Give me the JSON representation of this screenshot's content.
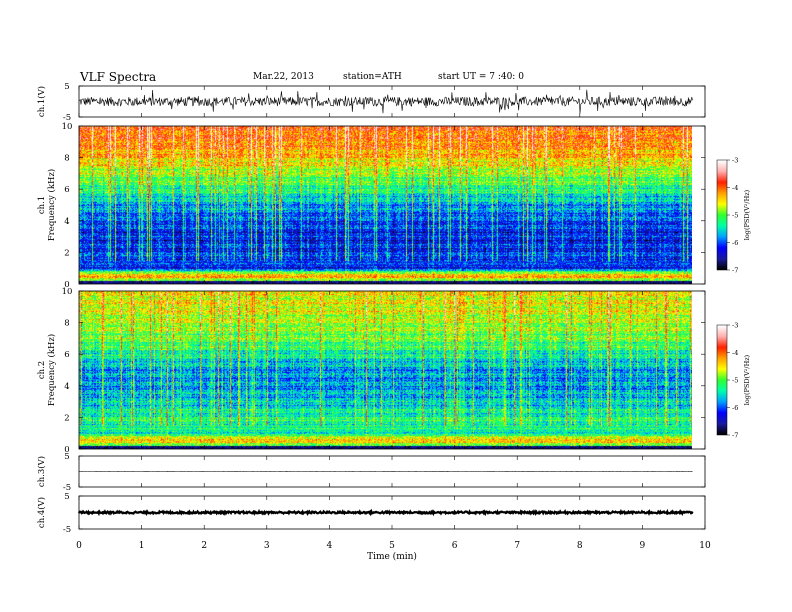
{
  "header": {
    "title": "VLF  Spectra",
    "date": "Mar.22, 2013",
    "station": "station=ATH",
    "start_ut": "start  UT  =   7 :40: 0"
  },
  "colors": {
    "background": "#ffffff",
    "axis": "#000000",
    "colormap": [
      "#000000",
      "#1a1aa0",
      "#0000ff",
      "#00a0ff",
      "#00ffaa",
      "#30ff30",
      "#ffff00",
      "#ffa000",
      "#ff2000",
      "#ffb0b0",
      "#ffffff"
    ]
  },
  "chart_data": [
    {
      "type": "line",
      "panel": "ch1-waveform",
      "ylabel": "ch.1(V)",
      "yticks": [
        "5",
        "-5"
      ],
      "ylim": [
        -5,
        5
      ],
      "xlim": [
        0,
        10
      ],
      "data_end_min": 9.8,
      "typical_amplitude_v": 1.5,
      "description_values": {
        "baseline": 0
      }
    },
    {
      "type": "heatmap",
      "panel": "ch1-spectrogram",
      "ylabel": "ch.1\nFrequency  (kHz)",
      "ylabel_lines": [
        "ch.1",
        "Frequency  (kHz)"
      ],
      "yticks": [
        "0",
        "2",
        "4",
        "6",
        "8",
        "10"
      ],
      "ylim": [
        0,
        10
      ],
      "xlim": [
        0,
        10
      ],
      "data_end_min": 9.8,
      "colorbar": {
        "label": "log(PSD(V²/Hz)",
        "ticks": [
          "-3",
          "-4",
          "-5",
          "-6",
          "-7"
        ],
        "range": [
          -7,
          -3
        ]
      },
      "profile_khz": [
        0,
        0.5,
        1,
        2,
        3,
        4,
        5,
        6,
        7,
        8,
        9,
        10
      ],
      "profile_log_psd": [
        -6.5,
        -4.0,
        -6.2,
        -6.4,
        -6.5,
        -6.3,
        -6.0,
        -5.5,
        -5.1,
        -4.6,
        -4.3,
        -4.2
      ]
    },
    {
      "type": "heatmap",
      "panel": "ch2-spectrogram",
      "ylabel": "ch.2\nFrequency  (kHz)",
      "ylabel_lines": [
        "ch.2",
        "Frequency  (kHz)"
      ],
      "yticks": [
        "0",
        "2",
        "4",
        "6",
        "8",
        "10"
      ],
      "ylim": [
        0,
        10
      ],
      "xlim": [
        0,
        10
      ],
      "data_end_min": 9.8,
      "colorbar": {
        "label": "log(PSD(V²/Hz)",
        "ticks": [
          "-3",
          "-4",
          "-5",
          "-6",
          "-7"
        ],
        "range": [
          -7,
          -3
        ]
      },
      "profile_khz": [
        0,
        0.5,
        1,
        2,
        3,
        4,
        5,
        6,
        7,
        8,
        9,
        10
      ],
      "profile_log_psd": [
        -6.5,
        -4.2,
        -5.4,
        -5.5,
        -5.8,
        -6.0,
        -6.0,
        -5.6,
        -5.2,
        -5.0,
        -4.8,
        -4.8
      ]
    },
    {
      "type": "line",
      "panel": "ch3-waveform",
      "ylabel": "ch.3(V)",
      "yticks": [
        "5",
        "-5"
      ],
      "ylim": [
        -5,
        5
      ],
      "xlim": [
        0,
        10
      ],
      "data_end_min": 9.8,
      "baseline_v": 0
    },
    {
      "type": "line",
      "panel": "ch4-waveform",
      "ylabel": "ch.4(V)",
      "yticks": [
        "5",
        "-5"
      ],
      "ylim": [
        -5,
        5
      ],
      "xlim": [
        0,
        10
      ],
      "data_end_min": 9.8,
      "baseline_v": 0,
      "typical_amplitude_v": 0.3
    }
  ],
  "xaxis": {
    "label": "Time  (min)",
    "ticks": [
      "0",
      "1",
      "2",
      "3",
      "4",
      "5",
      "6",
      "7",
      "8",
      "9",
      "10"
    ]
  }
}
